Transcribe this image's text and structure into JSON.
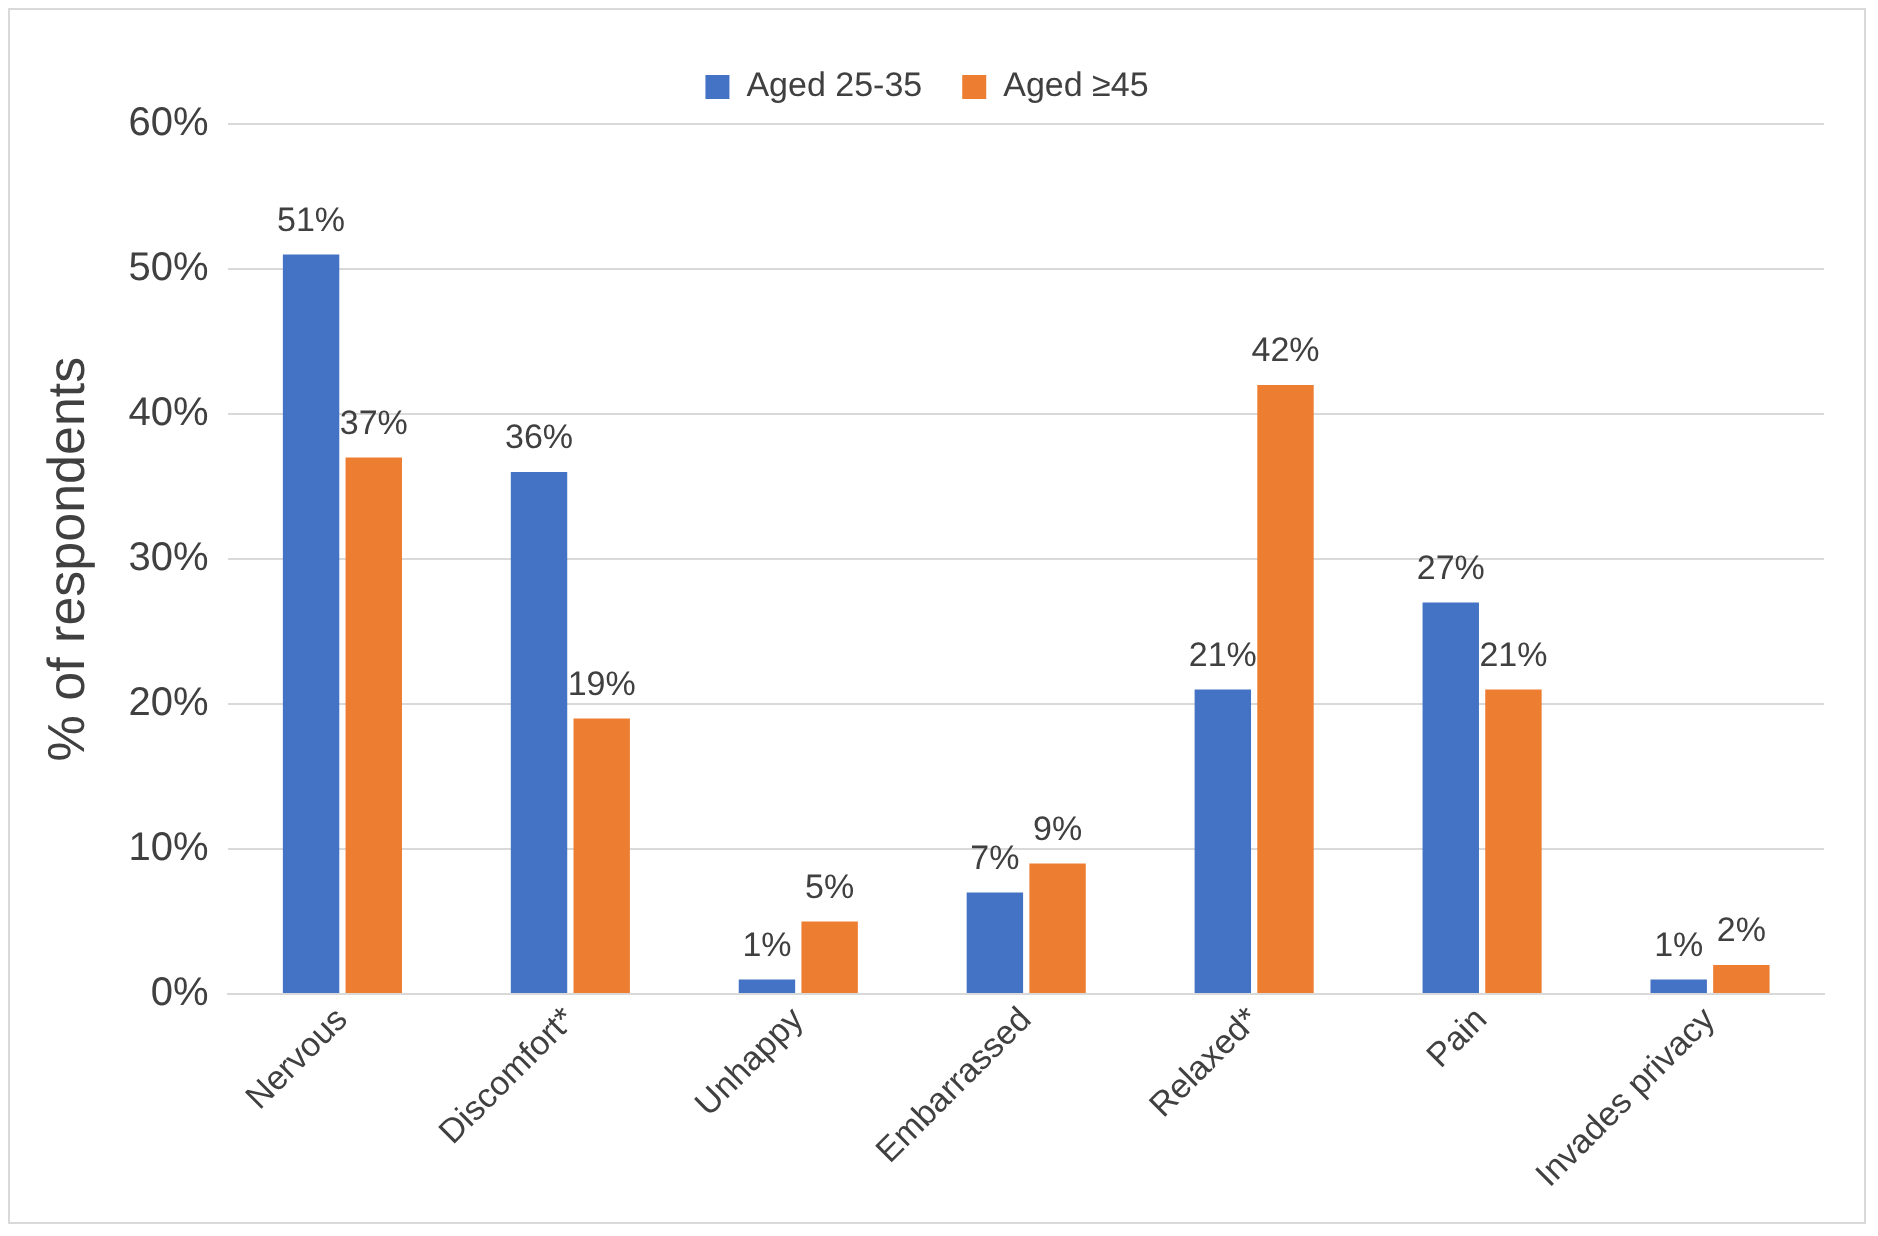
{
  "chart_data": {
    "type": "bar",
    "ylabel": "% of respondents",
    "categories": [
      "Nervous",
      "Discomfort*",
      "Unhappy",
      "Embarrassed",
      "Relaxed*",
      "Pain",
      "Invades privacy"
    ],
    "series": [
      {
        "name": "Aged 25-35",
        "color": "#4472c4",
        "values": [
          51,
          36,
          1,
          7,
          21,
          27,
          1
        ],
        "value_labels": [
          "51%",
          "36%",
          "1%",
          "7%",
          "21%",
          "27%",
          "1%"
        ]
      },
      {
        "name": "Aged ≥45",
        "color": "#ed7d31",
        "values": [
          37,
          19,
          5,
          9,
          42,
          21,
          2
        ],
        "value_labels": [
          "37%",
          "19%",
          "5%",
          "9%",
          "42%",
          "21%",
          "2%"
        ]
      }
    ],
    "ylim": [
      0,
      60
    ],
    "yticks": [
      {
        "value": 0,
        "label": "0%"
      },
      {
        "value": 10,
        "label": "10%"
      },
      {
        "value": 20,
        "label": "20%"
      },
      {
        "value": 30,
        "label": "30%"
      },
      {
        "value": 40,
        "label": "40%"
      },
      {
        "value": 50,
        "label": "50%"
      },
      {
        "value": 60,
        "label": "60%"
      }
    ],
    "grid": "y",
    "legend": "top"
  }
}
